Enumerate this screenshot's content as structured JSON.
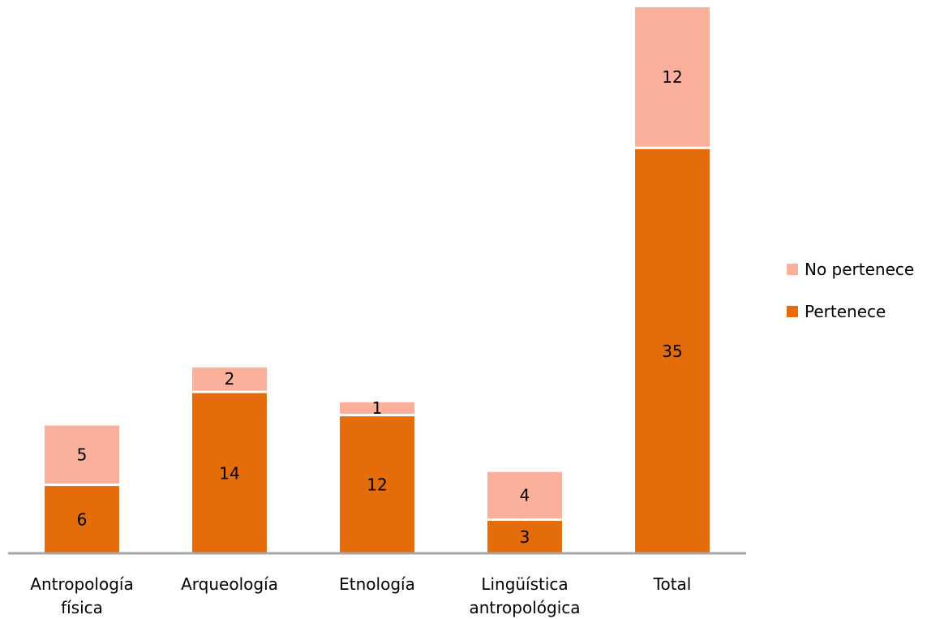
{
  "chart_data": {
    "type": "bar",
    "stacked": true,
    "categories": [
      "Antropología física",
      "Arqueología",
      "Etnología",
      "Lingüística antropológica",
      "Total"
    ],
    "series": [
      {
        "name": "Pertenece",
        "values": [
          6,
          14,
          12,
          3,
          35
        ],
        "color": "#E46C0A"
      },
      {
        "name": "No pertenece",
        "values": [
          5,
          2,
          1,
          4,
          12
        ],
        "color": "#FAB09B"
      }
    ],
    "data_labels": true,
    "ylim": [
      0,
      47
    ],
    "grid": false,
    "legend_position": "right",
    "axis_color": "#A6A6A6"
  },
  "legend": {
    "items": [
      {
        "label": "No pertenece",
        "color": "#FAB09B"
      },
      {
        "label": "Pertenece",
        "color": "#E46C0A"
      }
    ]
  }
}
